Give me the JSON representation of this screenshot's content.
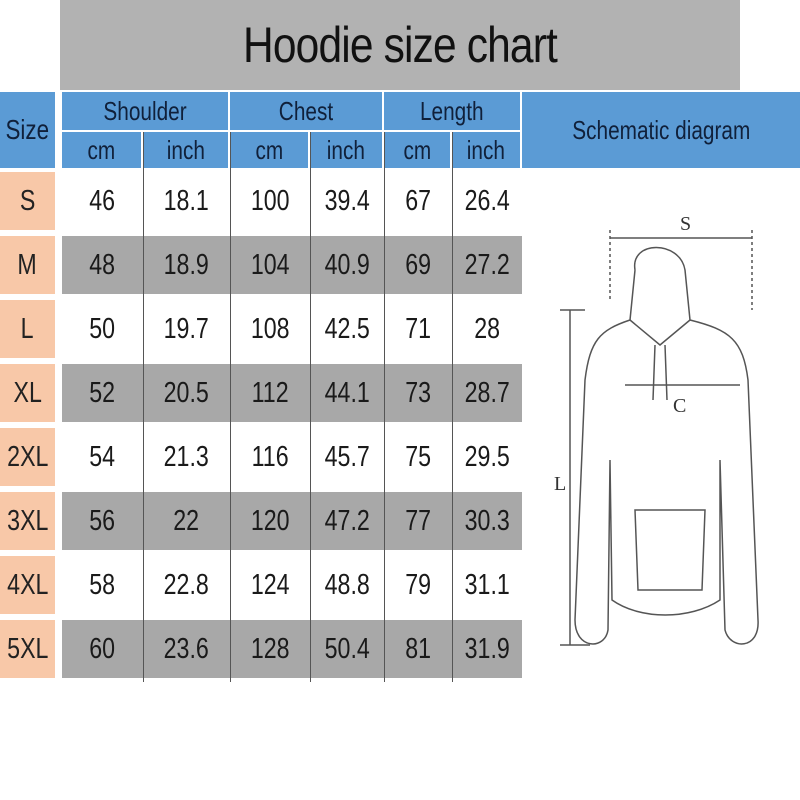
{
  "title": "Hoodie size chart",
  "chart_data": {
    "type": "table",
    "title": "Hoodie size chart",
    "header": {
      "size": "Size",
      "groups": [
        "Shoulder",
        "Chest",
        "Length"
      ],
      "units": [
        "cm",
        "inch",
        "cm",
        "inch",
        "cm",
        "inch"
      ],
      "diagram": "Schematic diagram"
    },
    "rows": [
      {
        "size": "S",
        "values": [
          "46",
          "18.1",
          "100",
          "39.4",
          "67",
          "26.4"
        ]
      },
      {
        "size": "M",
        "values": [
          "48",
          "18.9",
          "104",
          "40.9",
          "69",
          "27.2"
        ]
      },
      {
        "size": "L",
        "values": [
          "50",
          "19.7",
          "108",
          "42.5",
          "71",
          "28"
        ]
      },
      {
        "size": "XL",
        "values": [
          "52",
          "20.5",
          "112",
          "44.1",
          "73",
          "28.7"
        ]
      },
      {
        "size": "2XL",
        "values": [
          "54",
          "21.3",
          "116",
          "45.7",
          "75",
          "29.5"
        ]
      },
      {
        "size": "3XL",
        "values": [
          "56",
          "22",
          "120",
          "47.2",
          "77",
          "30.3"
        ]
      },
      {
        "size": "4XL",
        "values": [
          "58",
          "22.8",
          "124",
          "48.8",
          "79",
          "31.1"
        ]
      },
      {
        "size": "5XL",
        "values": [
          "60",
          "23.6",
          "128",
          "50.4",
          "81",
          "31.9"
        ]
      }
    ]
  },
  "diagram_labels": {
    "shoulder": "S",
    "chest": "C",
    "length": "L"
  },
  "colors": {
    "header": "#5b9bd5",
    "size_cell": "#f8c8a8",
    "stripe": "#a8a8a8",
    "title_bg": "#b2b2b2"
  }
}
